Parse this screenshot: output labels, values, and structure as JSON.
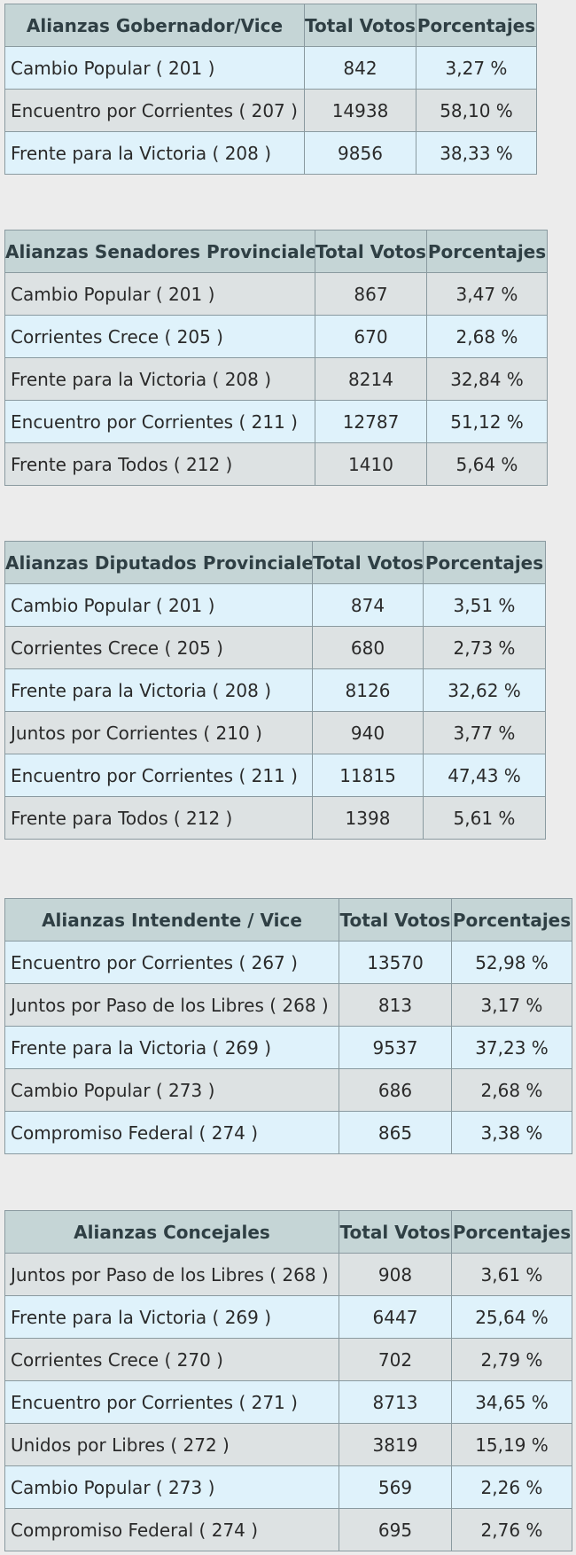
{
  "tables": [
    {
      "header": [
        "Alianzas Gobernador/Vice",
        "Total Votos",
        "Porcentajes"
      ],
      "rows": [
        [
          "Cambio Popular ( 201 )",
          "842",
          "3,27 %"
        ],
        [
          "Encuentro por Corrientes ( 207 )",
          "14938",
          "58,10 %"
        ],
        [
          "Frente para la Victoria ( 208 )",
          "9856",
          "38,33 %"
        ]
      ]
    },
    {
      "header": [
        "Alianzas Senadores Provinciales",
        "Total Votos",
        "Porcentajes"
      ],
      "rows": [
        [
          "Cambio Popular ( 201 )",
          "867",
          "3,47 %"
        ],
        [
          "Corrientes Crece ( 205 )",
          "670",
          "2,68 %"
        ],
        [
          "Frente para la Victoria ( 208 )",
          "8214",
          "32,84 %"
        ],
        [
          "Encuentro por Corrientes ( 211 )",
          "12787",
          "51,12 %"
        ],
        [
          "Frente para Todos ( 212 )",
          "1410",
          "5,64 %"
        ]
      ]
    },
    {
      "header": [
        "Alianzas Diputados Provinciales",
        "Total Votos",
        "Porcentajes"
      ],
      "rows": [
        [
          "Cambio Popular ( 201 )",
          "874",
          "3,51 %"
        ],
        [
          "Corrientes Crece ( 205 )",
          "680",
          "2,73 %"
        ],
        [
          "Frente para la Victoria ( 208 )",
          "8126",
          "32,62 %"
        ],
        [
          "Juntos por Corrientes ( 210 )",
          "940",
          "3,77 %"
        ],
        [
          "Encuentro por Corrientes ( 211 )",
          "11815",
          "47,43 %"
        ],
        [
          "Frente para Todos ( 212 )",
          "1398",
          "5,61 %"
        ]
      ]
    },
    {
      "header": [
        "Alianzas Intendente / Vice",
        "Total Votos",
        "Porcentajes"
      ],
      "rows": [
        [
          "Encuentro por Corrientes ( 267 )",
          "13570",
          "52,98 %"
        ],
        [
          "Juntos por Paso de los Libres ( 268 )",
          "813",
          "3,17 %"
        ],
        [
          "Frente para la Victoria ( 269 )",
          "9537",
          "37,23 %"
        ],
        [
          "Cambio Popular ( 273 )",
          "686",
          "2,68 %"
        ],
        [
          "Compromiso Federal ( 274 )",
          "865",
          "3,38 %"
        ]
      ]
    },
    {
      "header": [
        "Alianzas Concejales",
        "Total Votos",
        "Porcentajes"
      ],
      "rows": [
        [
          "Juntos por Paso de los Libres ( 268 )",
          "908",
          "3,61 %"
        ],
        [
          "Frente para la Victoria ( 269 )",
          "6447",
          "25,64 %"
        ],
        [
          "Corrientes Crece ( 270 )",
          "702",
          "2,79 %"
        ],
        [
          "Encuentro por Corrientes ( 271 )",
          "8713",
          "34,65 %"
        ],
        [
          "Unidos por Libres ( 272 )",
          "3819",
          "15,19 %"
        ],
        [
          "Cambio Popular ( 273 )",
          "569",
          "2,26 %"
        ],
        [
          "Compromiso Federal ( 274 )",
          "695",
          "2,76 %"
        ]
      ]
    }
  ],
  "colors": {
    "header_bg": "#c5d5d6",
    "row_light_blue": "#dff2fb",
    "row_gray": "#dde2e3",
    "border": "#8a9aa0",
    "page_bg": "#ececec"
  }
}
